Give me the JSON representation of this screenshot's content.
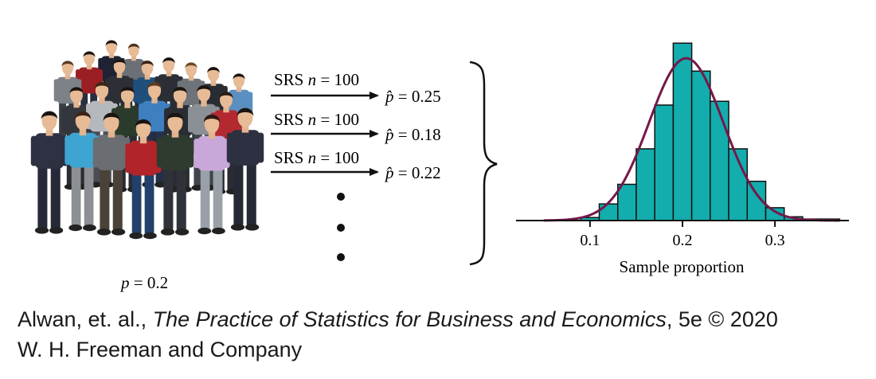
{
  "population": {
    "label_var": "p",
    "label_eq": " = 0.2",
    "value": 0.2
  },
  "samples": [
    {
      "label_prefix": "SRS ",
      "label_var": "n",
      "label_eq": " = 100",
      "result_var": "p̂",
      "result_eq": " = 0.25"
    },
    {
      "label_prefix": "SRS ",
      "label_var": "n",
      "label_eq": " = 100",
      "result_var": "p̂",
      "result_eq": " = 0.18"
    },
    {
      "label_prefix": "SRS ",
      "label_var": "n",
      "label_eq": " = 100",
      "result_var": "p̂",
      "result_eq": " = 0.22"
    }
  ],
  "chart_data": {
    "type": "bar",
    "xlabel": "Sample proportion",
    "ylabel": "",
    "xticks": [
      "0.1",
      "0.2",
      "0.3"
    ],
    "xtick_values": [
      0.1,
      0.2,
      0.3
    ],
    "xlim": [
      0.02,
      0.38
    ],
    "bin_width": 0.02,
    "bin_starts": [
      0.09,
      0.11,
      0.13,
      0.15,
      0.17,
      0.19,
      0.21,
      0.23,
      0.25,
      0.27,
      0.29,
      0.31,
      0.33,
      0.35
    ],
    "values": [
      0.4,
      2.2,
      4.8,
      9.5,
      15.3,
      23.5,
      19.8,
      15.8,
      9.5,
      5.2,
      1.7,
      0.5,
      0.2,
      0.2
    ],
    "ylim": [
      0,
      25
    ],
    "curve": {
      "type": "normal",
      "mean": 0.204,
      "sd": 0.04,
      "peak": 21.5,
      "color": "#74184a"
    },
    "bar_color": "#13adad",
    "grid": false
  },
  "caption": {
    "authors": "Alwan, et. al., ",
    "book_title": "The Practice of Statistics for Business and Economics",
    "edition": ", 5e © 2020",
    "publisher": "W. H. Freeman and Company"
  }
}
